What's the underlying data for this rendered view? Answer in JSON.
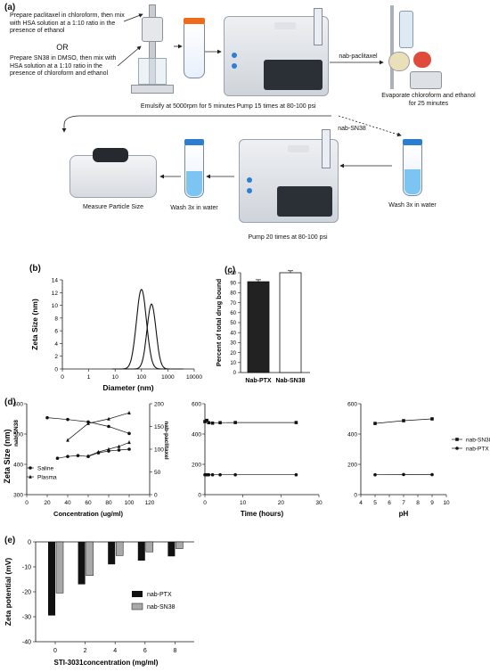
{
  "panel_a": {
    "label": "(a)",
    "text_paclitaxel": "Prepare paclitaxel in chloroform, then mix with HSA solution at a 1:10 ratio in the presence of ethanol",
    "text_or": "OR",
    "text_sn38": "Prepare SN38 in DMSO, then mix with HSA solution at a 1:10 ratio in the presence of chloroform and ethanol",
    "emulsify": "Emulsify at 5000rpm for 5 minutes",
    "pump15": "Pump 15 times at 80-100 psi",
    "nab_paclitaxel": "nab-paclitaxel",
    "evaporate": "Evaporate chloroform and ethanol for 25 minutes",
    "nab_sn38": "nab-SN38",
    "wash_right": "Wash 3x in water",
    "wash_left": "Wash 3x in water",
    "measure": "Measure Particle Size",
    "pump20": "Pump 20 times at 80-100 psi"
  },
  "colors": {
    "black": "#111111",
    "gray": "#a9a9a9",
    "arrow": "#222222"
  },
  "chart_data": [
    {
      "panel": "(b)",
      "type": "line",
      "ylabel": "Zeta Size (nm)",
      "xlabel": "Diameter (nm)",
      "xscale": "log",
      "xticks": [
        "0",
        "1",
        "10",
        "100",
        "1000",
        "10000"
      ],
      "ylim": [
        0,
        14
      ],
      "yticks": [
        "0",
        "2",
        "4",
        "6",
        "8",
        "10",
        "12",
        "14"
      ],
      "series": [
        {
          "peak_x": 100,
          "peak_y": 12.5,
          "sigma_log10": 0.19
        },
        {
          "peak_x": 240,
          "peak_y": 10.2,
          "sigma_log10": 0.17
        }
      ]
    },
    {
      "panel": "(c)",
      "type": "bar",
      "ylabel": "Percent of total drug bound",
      "categories": [
        "Nab-PTX",
        "Nab-SN38"
      ],
      "values": [
        91,
        100
      ],
      "errors": [
        2,
        2
      ],
      "fills": [
        "#222222",
        "#ffffff"
      ],
      "ylim": [
        0,
        100
      ],
      "yticks": [
        "0",
        "10",
        "20",
        "30",
        "40",
        "50",
        "60",
        "70",
        "80",
        "90",
        "100"
      ]
    },
    {
      "panel": "(d)",
      "type": "line",
      "title_left": "nab-SN38",
      "title_right": "nab-paclitaxel",
      "ylabel": "Zeta Size (nm)",
      "xlabel": "Concentration (ug/ml)",
      "xlim": [
        0,
        120
      ],
      "xticks": [
        "0",
        "20",
        "40",
        "60",
        "80",
        "100",
        "120"
      ],
      "ylim_left": [
        300,
        600
      ],
      "yticks_left": [
        "300",
        "400",
        "500",
        "600"
      ],
      "ylim_right": [
        0,
        200
      ],
      "yticks_right": [
        "0",
        "50",
        "100",
        "150",
        "200"
      ],
      "legend": [
        "Saline",
        "Plasma"
      ],
      "series": [
        {
          "name": "Saline",
          "axis": "left",
          "marker": "circle",
          "x": [
            20,
            40,
            60,
            80,
            100
          ],
          "y": [
            554,
            548,
            540,
            525,
            502
          ]
        },
        {
          "name": "Plasma",
          "axis": "left",
          "marker": "triangle",
          "x": [
            40,
            60,
            80,
            100
          ],
          "y": [
            480,
            535,
            550,
            570
          ]
        },
        {
          "name": "Saline",
          "axis": "right",
          "marker": "circle",
          "x": [
            30,
            40,
            50,
            60,
            70,
            80,
            90,
            100
          ],
          "y": [
            80,
            84,
            86,
            84,
            92,
            96,
            98,
            100
          ]
        },
        {
          "name": "Plasma",
          "axis": "right",
          "marker": "triangle",
          "x": [
            60,
            70,
            80,
            90,
            100
          ],
          "y": [
            85,
            94,
            100,
            106,
            115
          ]
        }
      ]
    },
    {
      "panel": "(d2)",
      "type": "line",
      "xlabel": "Time (hours)",
      "xlim": [
        0,
        30
      ],
      "xticks": [
        "0",
        "10",
        "20",
        "30"
      ],
      "ylim": [
        0,
        600
      ],
      "yticks": [
        "0",
        "200",
        "400",
        "600"
      ],
      "series": [
        {
          "name": "nab-SN38",
          "marker": "square",
          "x": [
            0,
            0.5,
            1,
            2,
            4,
            8,
            24
          ],
          "y": [
            482,
            490,
            475,
            472,
            475,
            476,
            476
          ]
        },
        {
          "name": "nab-PTX",
          "marker": "circle",
          "x": [
            0,
            0.5,
            1,
            2,
            4,
            8,
            24
          ],
          "y": [
            131,
            131,
            131,
            131,
            131,
            131,
            131
          ]
        }
      ]
    },
    {
      "panel": "(d3)",
      "type": "line",
      "xlabel": "pH",
      "xlim": [
        4,
        10
      ],
      "xticks": [
        "4",
        "5",
        "6",
        "7",
        "8",
        "9",
        "10"
      ],
      "ylim": [
        0,
        600
      ],
      "yticks": [
        "0",
        "200",
        "400",
        "600"
      ],
      "legend": [
        "nab-SN38",
        "nab-PTX"
      ],
      "series": [
        {
          "name": "nab-SN38",
          "marker": "square",
          "x": [
            5,
            7,
            9
          ],
          "y": [
            470,
            488,
            500
          ]
        },
        {
          "name": "nab-PTX",
          "marker": "circle",
          "x": [
            5,
            7,
            9
          ],
          "y": [
            131,
            133,
            132
          ]
        }
      ]
    },
    {
      "panel": "(e)",
      "type": "bar",
      "ylabel": "Zeta potential (mV)",
      "xlabel": "STI-3031concentration (mg/ml)",
      "categories": [
        "0",
        "2",
        "4",
        "6",
        "8"
      ],
      "ylim": [
        -40,
        0
      ],
      "yticks": [
        "0",
        "-10",
        "-20",
        "-30",
        "-40"
      ],
      "legend": [
        "nab-PTX",
        "nab-SN38"
      ],
      "series": [
        {
          "name": "nab-PTX",
          "values": [
            -29.5,
            -17,
            -9,
            -7.5,
            -5.8
          ]
        },
        {
          "name": "nab-SN38",
          "values": [
            -20.5,
            -13.5,
            -5.5,
            -4,
            -2.7
          ]
        }
      ]
    }
  ]
}
